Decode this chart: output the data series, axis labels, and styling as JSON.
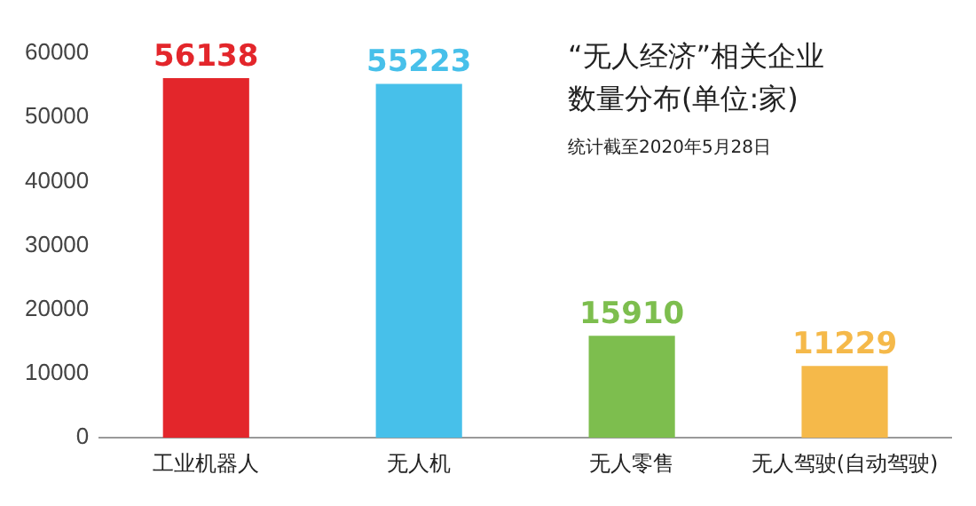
{
  "chart_data": {
    "type": "bar",
    "title": "“无人经济”相关企业数量分布(单位:家)",
    "annotations": [
      "统计截至2020年5月28日"
    ],
    "categories": [
      "工业机器人",
      "无人机",
      "无人零售",
      "无人驾驶(自动驾驶)"
    ],
    "values": [
      56138,
      55223,
      15910,
      11229
    ],
    "colors": [
      "#e3262b",
      "#47c0ea",
      "#7dbe4e",
      "#f5b94a"
    ],
    "ylim": [
      0,
      60000
    ],
    "yticks": [
      0,
      10000,
      20000,
      30000,
      40000,
      50000,
      60000
    ],
    "grid": false,
    "data_labels": true
  }
}
